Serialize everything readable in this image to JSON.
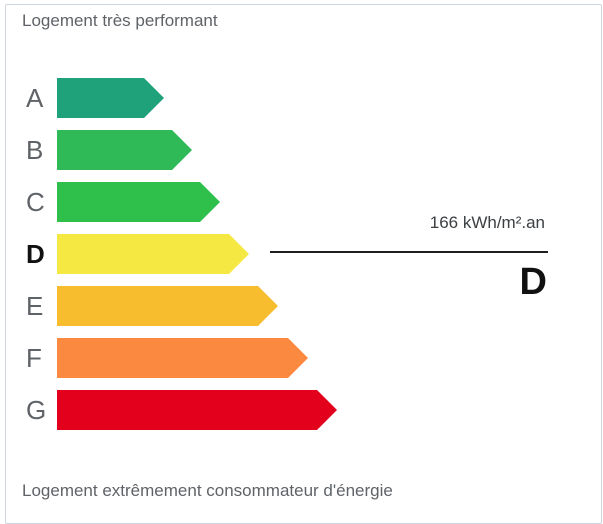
{
  "labels": {
    "top": "Logement très performant",
    "bottom": "Logement extrêmement consommateur d'énergie"
  },
  "selected": {
    "class": "D",
    "value": "166 kWh/m².an"
  },
  "classes": [
    {
      "letter": "A",
      "color": "#1fa179"
    },
    {
      "letter": "B",
      "color": "#2fba57"
    },
    {
      "letter": "C",
      "color": "#2fbf4b"
    },
    {
      "letter": "D",
      "color": "#f6e843"
    },
    {
      "letter": "E",
      "color": "#f8bd2f"
    },
    {
      "letter": "F",
      "color": "#fb8a40"
    },
    {
      "letter": "G",
      "color": "#e3001d"
    }
  ]
}
